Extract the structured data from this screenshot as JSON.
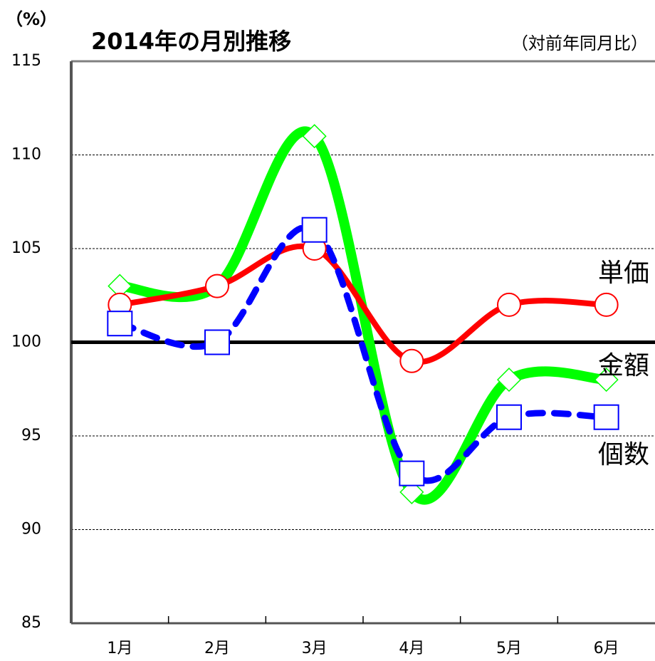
{
  "chart_data": {
    "type": "line",
    "title": "2014年の月別推移",
    "subtitle": "（対前年同月比）",
    "y_axis_label": "（%）",
    "categories": [
      "1月",
      "2月",
      "3月",
      "4月",
      "5月",
      "6月"
    ],
    "series": [
      {
        "name": "金額",
        "color": "#00ff00",
        "marker": "diamond",
        "values": [
          103,
          103,
          111,
          92,
          98,
          98
        ]
      },
      {
        "name": "単価",
        "color": "#ff0000",
        "marker": "circle",
        "values": [
          102,
          103,
          105,
          99,
          102,
          102
        ]
      },
      {
        "name": "個数",
        "color": "#0000ff",
        "marker": "square",
        "dashed": true,
        "values": [
          101,
          100,
          106,
          93,
          96,
          96
        ]
      }
    ],
    "ylim": [
      85,
      115
    ],
    "yticks": [
      85,
      90,
      95,
      100,
      105,
      110,
      115
    ],
    "reference_value": 100,
    "grid": true,
    "smooth": true
  }
}
